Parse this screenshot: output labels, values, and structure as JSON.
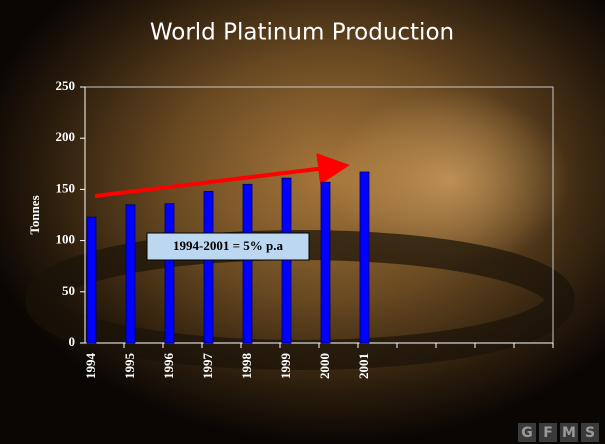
{
  "chart_data": {
    "type": "bar",
    "title": "World Platinum Production",
    "y_label": "Tonnes",
    "categories": [
      "1994",
      "1995",
      "1996",
      "1997",
      "1998",
      "1999",
      "2000",
      "2001",
      null,
      null,
      null,
      null
    ],
    "values": [
      123,
      135,
      136,
      148,
      155,
      161,
      157,
      167,
      null,
      null,
      null,
      null
    ],
    "color": "#0000ff",
    "ylim": [
      0,
      250
    ],
    "yticks": [
      0,
      50,
      100,
      150,
      200,
      250
    ],
    "grid": false,
    "annotation": "1994-2001 = 5% p.a"
  },
  "logo": [
    "G",
    "F",
    "M",
    "S"
  ]
}
